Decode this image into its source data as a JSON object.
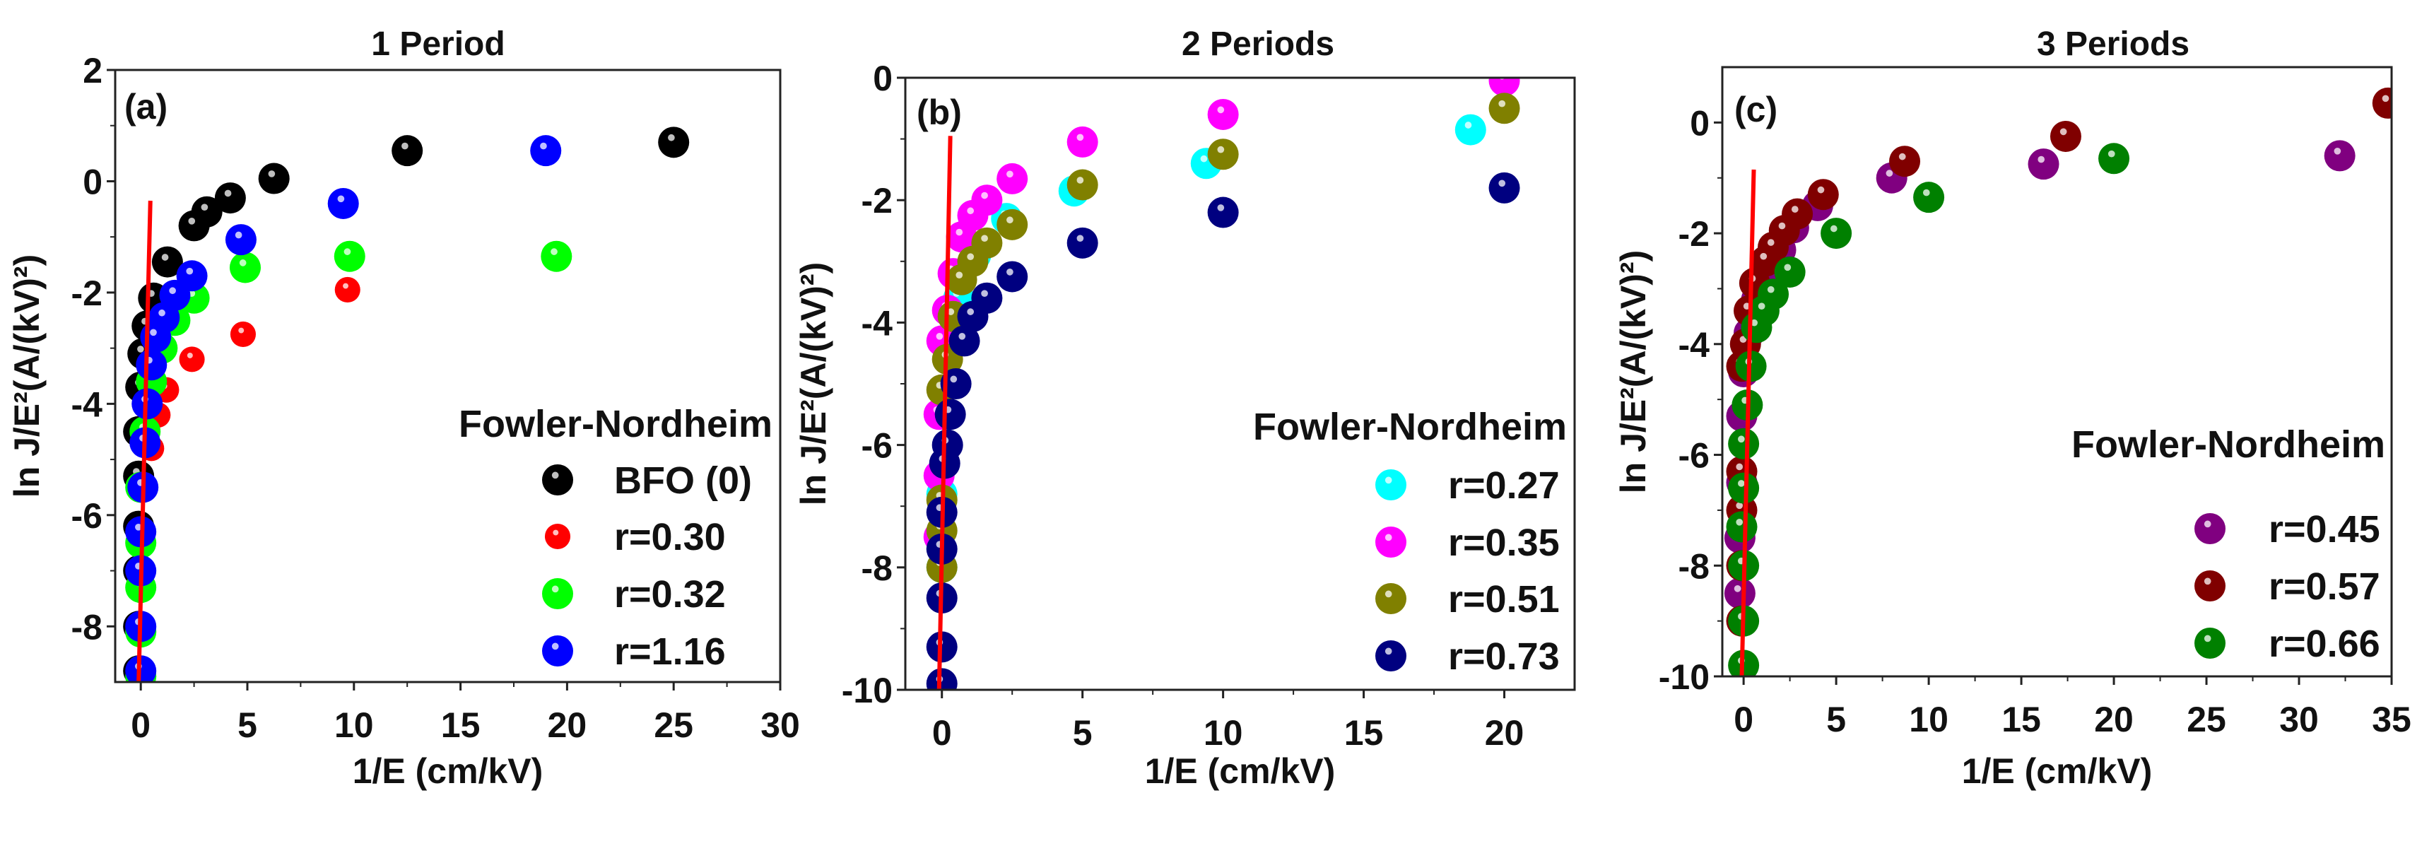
{
  "chart_data": [
    {
      "type": "scatter",
      "title": "1 Period",
      "panel_label": "(a)",
      "xlabel": "1/E (cm/kV)",
      "ylabel": "ln J/E²(A/(kV)²)",
      "xlim": [
        -1.2,
        30
      ],
      "ylim": [
        -9,
        2
      ],
      "xticks": [
        0,
        5,
        10,
        15,
        20,
        25,
        30
      ],
      "yticks": [
        -8,
        -6,
        -4,
        -2,
        0,
        2
      ],
      "legend_title": "Fowler-Nordheim",
      "legend_position": "right",
      "fit_line": {
        "color": "#ff0000",
        "x": [
          0.45,
          -0.1
        ],
        "y": [
          -0.35,
          -9
        ]
      },
      "series": [
        {
          "name": "BFO (0)",
          "color": "#000000",
          "x": [
            25,
            12.5,
            6.25,
            4.2,
            3.1,
            2.5,
            1.25,
            0.6,
            0.3,
            0.1,
            0,
            -0.1,
            -0.1,
            -0.1,
            -0.1,
            -0.1,
            -0.1
          ],
          "y": [
            0.7,
            0.55,
            0.05,
            -0.3,
            -0.55,
            -0.8,
            -1.45,
            -2.1,
            -2.6,
            -3.1,
            -3.7,
            -4.5,
            -5.3,
            -6.2,
            -7.0,
            -8.0,
            -8.8
          ]
        },
        {
          "name": "r=0.30",
          "color": "#ff0000",
          "x": [
            9.7,
            4.8,
            2.4,
            1.2,
            0.8,
            0.5,
            0.2,
            0,
            0,
            0,
            0
          ],
          "y": [
            -1.95,
            -2.75,
            -3.2,
            -3.75,
            -4.2,
            -4.8,
            -5.5,
            -6.5,
            -7.3,
            -8.1,
            -8.8
          ]
        },
        {
          "name": "r=0.32",
          "color": "#00ff00",
          "x": [
            19.5,
            9.8,
            4.9,
            2.5,
            1.6,
            1.0,
            0.5,
            0.2,
            0,
            0,
            0,
            0,
            0
          ],
          "y": [
            -1.35,
            -1.35,
            -1.55,
            -2.1,
            -2.5,
            -3.0,
            -3.6,
            -4.5,
            -5.5,
            -6.5,
            -7.3,
            -8.1,
            -8.9
          ]
        },
        {
          "name": "r=1.16",
          "color": "#0000ff",
          "x": [
            19,
            9.5,
            4.7,
            2.4,
            1.6,
            1.1,
            0.7,
            0.5,
            0.3,
            0.2,
            0.1,
            0,
            0,
            0,
            0
          ],
          "y": [
            0.55,
            -0.4,
            -1.05,
            -1.7,
            -2.05,
            -2.45,
            -2.8,
            -3.3,
            -4.0,
            -4.7,
            -5.5,
            -6.3,
            -7.0,
            -8.0,
            -8.8
          ]
        }
      ]
    },
    {
      "type": "scatter",
      "title": "2 Periods",
      "panel_label": "(b)",
      "xlabel": "1/E (cm/kV)",
      "ylabel": "ln J/E²(A/(kV)²)",
      "xlim": [
        -1.3,
        22.5
      ],
      "ylim": [
        -10,
        0
      ],
      "xticks": [
        0,
        5,
        10,
        15,
        20
      ],
      "yticks": [
        -10,
        -8,
        -6,
        -4,
        -2,
        0
      ],
      "legend_title": "Fowler-Nordheim",
      "legend_position": "right",
      "fit_line": {
        "color": "#ff0000",
        "x": [
          0.3,
          -0.1
        ],
        "y": [
          -0.95,
          -10
        ]
      },
      "series": [
        {
          "name": "r=0.27",
          "color": "#00ffff",
          "x": [
            18.8,
            9.4,
            4.7,
            2.3,
            1.2,
            0.6,
            0.3,
            0,
            0,
            0
          ],
          "y": [
            -0.85,
            -1.4,
            -1.85,
            -2.3,
            -2.9,
            -3.6,
            -4.4,
            -5.5,
            -6.8,
            -8.0
          ]
        },
        {
          "name": "r=0.35",
          "color": "#ff00ff",
          "x": [
            20,
            10,
            5,
            2.5,
            1.6,
            1.1,
            0.7,
            0.4,
            0.2,
            0,
            -0.1,
            -0.1,
            -0.1
          ],
          "y": [
            -0.05,
            -0.6,
            -1.05,
            -1.65,
            -2.0,
            -2.25,
            -2.6,
            -3.2,
            -3.8,
            -4.3,
            -5.5,
            -6.5,
            -7.5
          ]
        },
        {
          "name": "r=0.51",
          "color": "#808000",
          "x": [
            20,
            10,
            5,
            2.5,
            1.6,
            1.1,
            0.7,
            0.4,
            0.2,
            0,
            0,
            0,
            0
          ],
          "y": [
            -0.5,
            -1.25,
            -1.75,
            -2.4,
            -2.7,
            -3.0,
            -3.3,
            -3.9,
            -4.6,
            -5.1,
            -6.9,
            -7.4,
            -8.0
          ]
        },
        {
          "name": "r=0.73",
          "color": "#000080",
          "x": [
            20,
            10,
            5,
            2.5,
            1.6,
            1.1,
            0.8,
            0.5,
            0.3,
            0.2,
            0.1,
            0,
            0,
            0,
            0,
            0
          ],
          "y": [
            -1.8,
            -2.2,
            -2.7,
            -3.25,
            -3.6,
            -3.9,
            -4.3,
            -5.0,
            -5.5,
            -6.0,
            -6.3,
            -7.1,
            -7.7,
            -8.5,
            -9.3,
            -9.9
          ]
        }
      ]
    },
    {
      "type": "scatter",
      "title": "3 Periods",
      "panel_label": "(c)",
      "xlabel": "1/E (cm/kV)",
      "ylabel": "ln J/E²(A/(kV)²)",
      "xlim": [
        -1.15,
        35
      ],
      "ylim": [
        -10,
        1
      ],
      "xticks": [
        0,
        5,
        10,
        15,
        20,
        25,
        30,
        35
      ],
      "yticks": [
        -10,
        -8,
        -6,
        -4,
        -2,
        0
      ],
      "legend_title": "Fowler-Nordheim",
      "legend_position": "right",
      "fit_line": {
        "color": "#ff0000",
        "x": [
          0.55,
          -0.1
        ],
        "y": [
          -0.85,
          -10
        ]
      },
      "series": [
        {
          "name": "r=0.45",
          "color": "#800080",
          "x": [
            32.2,
            16.2,
            8,
            4,
            2.7,
            2,
            1.3,
            0.7,
            0.3,
            0,
            -0.1,
            -0.1,
            -0.2,
            -0.2
          ],
          "y": [
            -0.6,
            -0.75,
            -1.0,
            -1.5,
            -1.9,
            -2.3,
            -2.8,
            -3.2,
            -3.8,
            -4.5,
            -5.3,
            -6.5,
            -7.5,
            -8.5
          ]
        },
        {
          "name": "r=0.57",
          "color": "#800000",
          "x": [
            34.8,
            17.4,
            8.7,
            4.3,
            2.9,
            2.2,
            1.6,
            1.2,
            0.6,
            0.3,
            0.1,
            -0.1,
            -0.1,
            -0.1,
            -0.1,
            -0.1
          ],
          "y": [
            0.35,
            -0.25,
            -0.7,
            -1.3,
            -1.65,
            -1.95,
            -2.25,
            -2.5,
            -2.9,
            -3.4,
            -4.0,
            -4.4,
            -6.3,
            -7.0,
            -8.0,
            -9.0
          ]
        },
        {
          "name": "r=0.66",
          "color": "#008000",
          "x": [
            20,
            10,
            5,
            2.5,
            1.6,
            1.1,
            0.7,
            0.4,
            0.2,
            0,
            0,
            -0.1,
            0,
            0,
            0
          ],
          "y": [
            -0.65,
            -1.35,
            -2.0,
            -2.7,
            -3.1,
            -3.4,
            -3.7,
            -4.4,
            -5.1,
            -5.8,
            -6.6,
            -7.3,
            -8.0,
            -9.0,
            -9.8
          ]
        }
      ]
    }
  ]
}
